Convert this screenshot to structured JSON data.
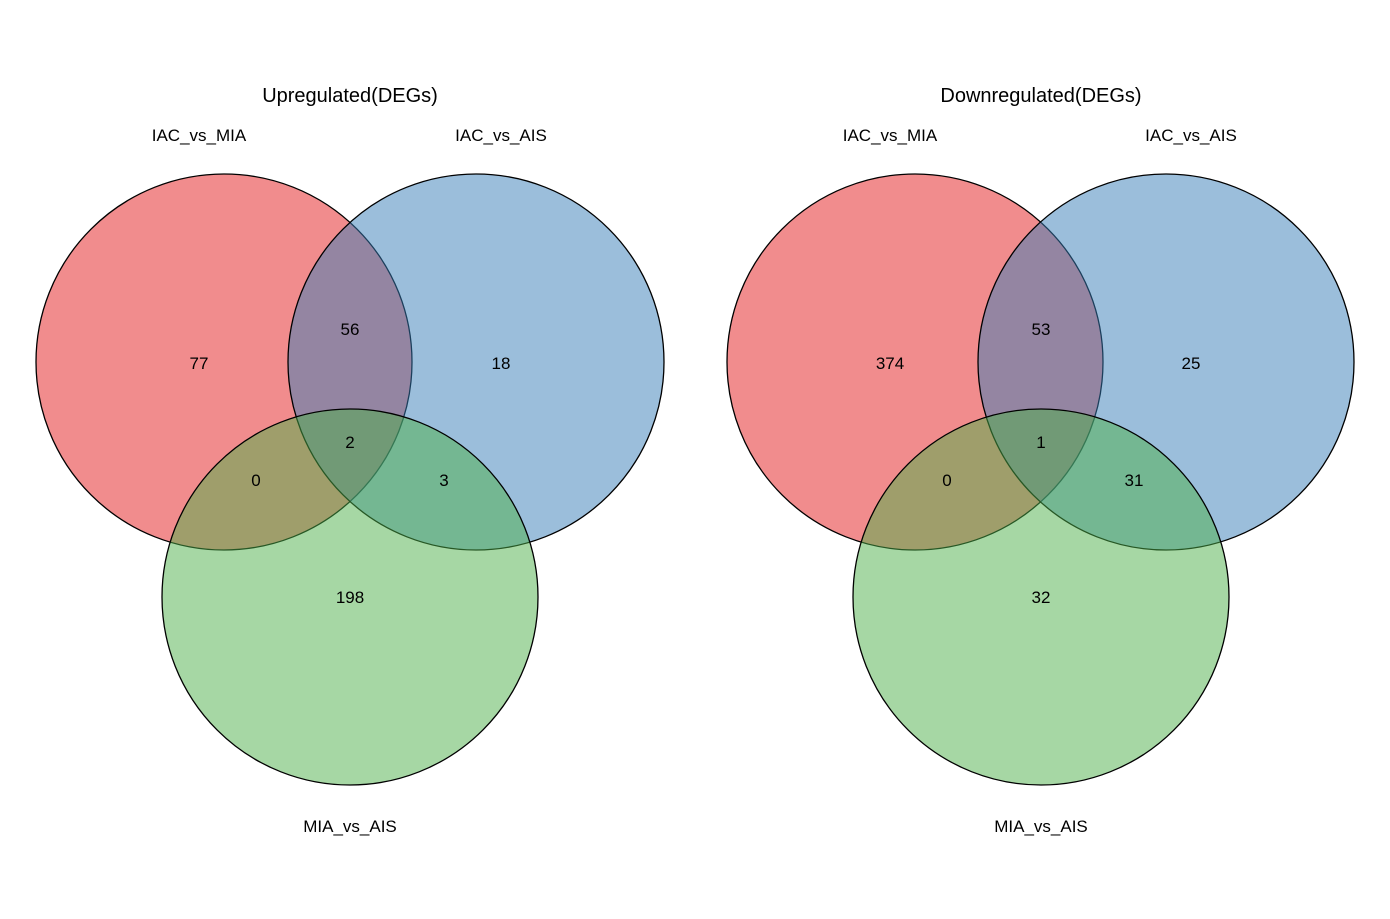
{
  "panels": [
    {
      "title": "Upregulated(DEGs)",
      "sets": [
        {
          "label": "IAC_vs_MIA",
          "color": "#E41A1C"
        },
        {
          "label": "IAC_vs_AIS",
          "color": "#377EB8"
        },
        {
          "label": "MIA_vs_AIS",
          "color": "#4DAF4A"
        }
      ],
      "regions": {
        "a_only": "77",
        "b_only": "18",
        "c_only": "198",
        "ab": "56",
        "ac": "0",
        "bc": "3",
        "abc": "2"
      }
    },
    {
      "title": "Downregulated(DEGs)",
      "sets": [
        {
          "label": "IAC_vs_MIA",
          "color": "#E41A1C"
        },
        {
          "label": "IAC_vs_AIS",
          "color": "#377EB8"
        },
        {
          "label": "MIA_vs_AIS",
          "color": "#4DAF4A"
        }
      ],
      "regions": {
        "a_only": "374",
        "b_only": "25",
        "c_only": "32",
        "ab": "53",
        "ac": "0",
        "bc": "31",
        "abc": "1"
      }
    }
  ],
  "fill_opacity": 0.5
}
